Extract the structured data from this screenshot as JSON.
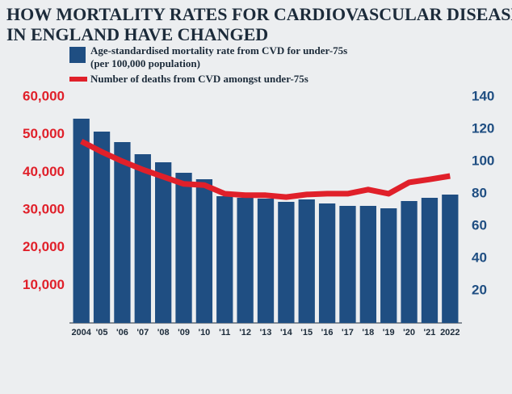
{
  "chart_data": {
    "type": "bar_line",
    "title": "HOW MORTALITY RATES FOR CARDIOVASCULAR DISEASE",
    "subtitle": "IN ENGLAND HAVE CHANGED",
    "categories": [
      "2004",
      "'05",
      "'06",
      "'07",
      "'08",
      "'09",
      "'10",
      "'11",
      "'12",
      "'13",
      "'14",
      "'15",
      "'16",
      "'17",
      "'18",
      "'19",
      "'20",
      "'21",
      "2022"
    ],
    "series": [
      {
        "name": "Age-standardised mortality rate from CVD for under-75s (per 100,000 population)",
        "color": "#1f4e82",
        "axis": "y2",
        "values": [
          126.5,
          118.5,
          112,
          104.5,
          99.5,
          93,
          89,
          78.5,
          77.5,
          77,
          75,
          76.5,
          74,
          72.5,
          72.5,
          71,
          75.5,
          77.5,
          79.5
        ]
      },
      {
        "name": "Number of deaths from CVD amongst under-75s",
        "color": "#e0202a",
        "values": [
          48200,
          45400,
          42900,
          40700,
          38800,
          36900,
          36600,
          34300,
          33900,
          33900,
          33400,
          34100,
          34300,
          34300,
          35400,
          34300,
          37300,
          38100,
          39000
        ]
      }
    ],
    "ylim": [
      0,
      60000
    ],
    "yticks": [
      {
        "value": 10000,
        "label": "10,000"
      },
      {
        "value": 20000,
        "label": "20,000"
      },
      {
        "value": 30000,
        "label": "30,000"
      },
      {
        "value": 40000,
        "label": "40,000"
      },
      {
        "value": 50000,
        "label": "50,000"
      },
      {
        "value": 60000,
        "label": "60,000"
      }
    ],
    "y2lim": [
      0,
      140
    ],
    "y2ticks": [
      20,
      40,
      60,
      80,
      100,
      120,
      140
    ]
  }
}
